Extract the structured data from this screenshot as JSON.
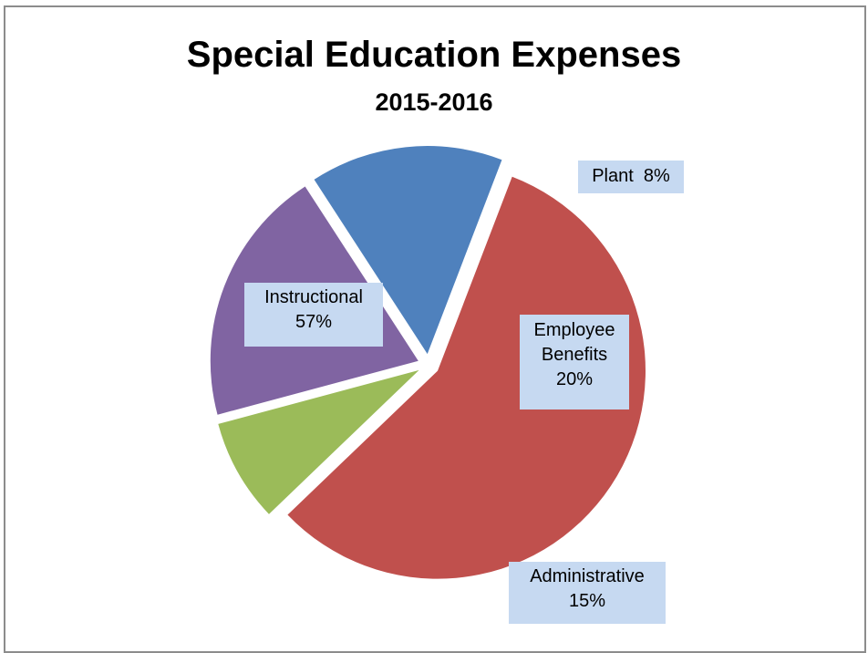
{
  "chart_data": {
    "type": "pie",
    "title": "Special Education Expenses",
    "subtitle": "2015-2016",
    "slices": [
      {
        "label": "Instructional",
        "value": 57,
        "value_label": "57%",
        "color": "#c0504d",
        "exploded": true
      },
      {
        "label": "Plant",
        "value": 8,
        "value_label": "8%",
        "color": "#9bbb59",
        "exploded": true
      },
      {
        "label": "Employee Benefits",
        "value": 20,
        "value_label": "20%",
        "color": "#8064a2",
        "exploded": true
      },
      {
        "label": "Administrative",
        "value": 15,
        "value_label": "15%",
        "color": "#4f81bd",
        "exploded": true
      }
    ],
    "label_background": "#c6d9f1",
    "legend": "none"
  }
}
